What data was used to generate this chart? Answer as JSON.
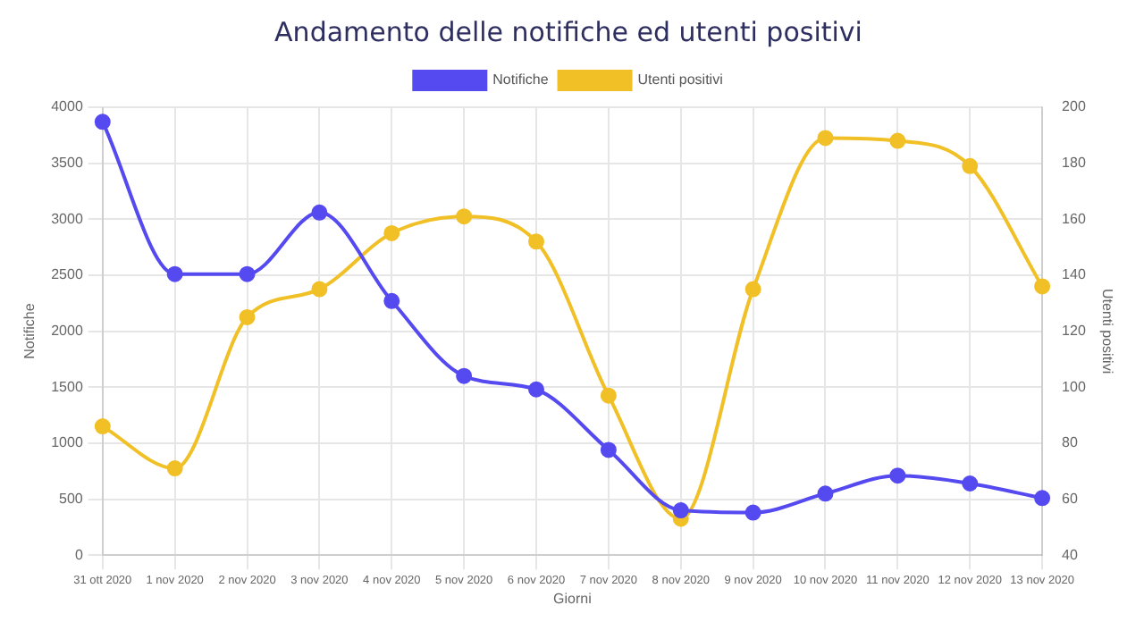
{
  "chart_data": {
    "type": "line",
    "title": "Andamento delle notifiche ed utenti positivi",
    "xlabel": "Giorni",
    "ylabel": "Notifiche",
    "y2label": "Utenti positivi",
    "categories": [
      "31 ott 2020",
      "1 nov 2020",
      "2 nov 2020",
      "3 nov 2020",
      "4 nov 2020",
      "5 nov 2020",
      "6 nov 2020",
      "7 nov 2020",
      "8 nov 2020",
      "9 nov 2020",
      "10 nov 2020",
      "11 nov 2020",
      "12 nov 2020",
      "13 nov 2020"
    ],
    "series": [
      {
        "name": "Notifiche",
        "color": "#5549f0",
        "values": [
          3870,
          2510,
          2510,
          3060,
          2270,
          1600,
          1480,
          940,
          400,
          380,
          550,
          710,
          640,
          510
        ]
      },
      {
        "name": "Utenti positivi",
        "color": "#f0c026",
        "axis": "y2",
        "values": [
          86,
          71,
          125,
          135,
          155,
          161,
          152,
          97,
          53,
          135,
          189,
          188,
          179,
          136
        ]
      }
    ],
    "ylim": [
      0,
      4000
    ],
    "yticks": [
      0,
      500,
      1000,
      1500,
      2000,
      2500,
      3000,
      3500,
      4000
    ],
    "y2lim": [
      40,
      200
    ],
    "y2ticks": [
      40,
      60,
      80,
      100,
      120,
      140,
      160,
      180,
      200
    ],
    "grid": true,
    "legend": "top",
    "marker": "circle",
    "line_style": "solid"
  }
}
